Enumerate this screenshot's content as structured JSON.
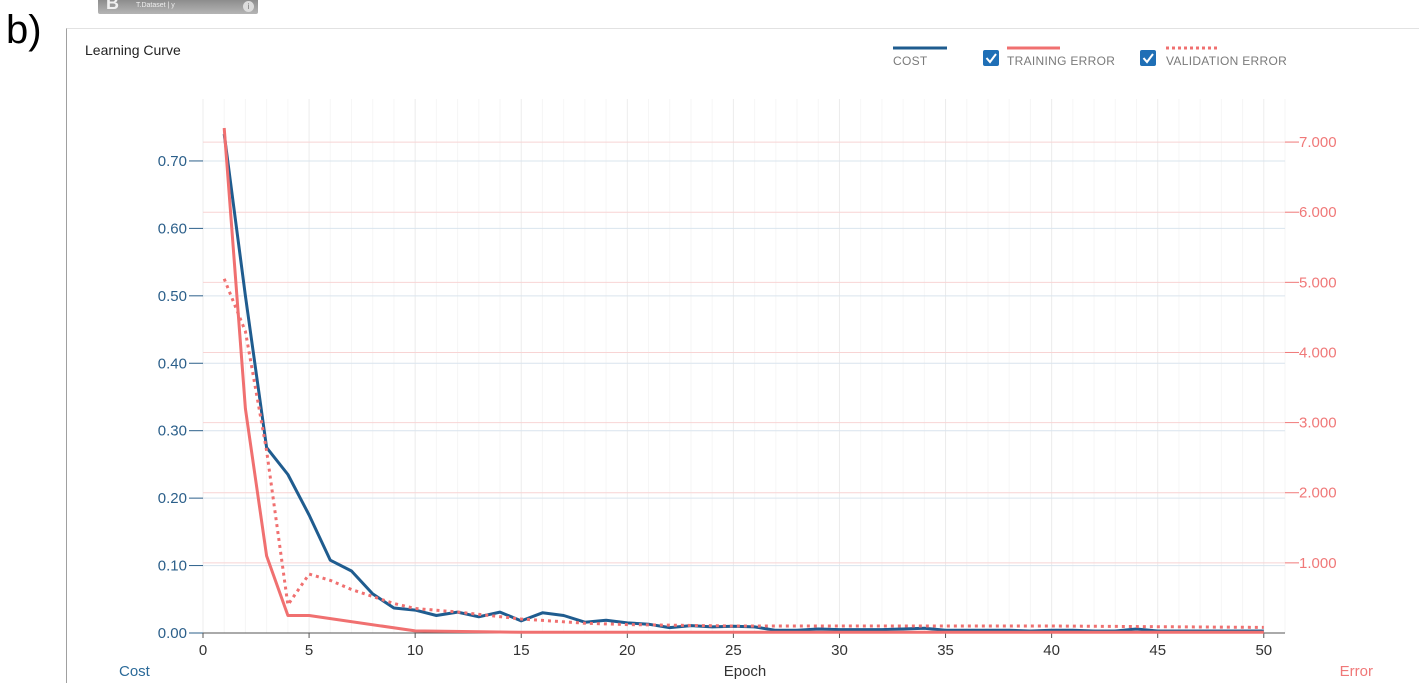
{
  "panel_label": "b)",
  "header_strip": {
    "letter": "B",
    "text": "T.Dataset | y"
  },
  "colors": {
    "cost": "#1f5c8f",
    "error": "#f07070",
    "grid_blue": "#d9e4ee",
    "grid_red": "#f8d4d4"
  },
  "chart_data": {
    "type": "line",
    "title": "Learning Curve",
    "xlabel": "Epoch",
    "ylabel_left": "Cost",
    "ylabel_right": "Error",
    "xlim": [
      0,
      51
    ],
    "ylim_left": [
      0,
      0.78
    ],
    "ylim_right": [
      0,
      7.5
    ],
    "x_ticks": [
      "0",
      "5",
      "10",
      "15",
      "20",
      "25",
      "30",
      "35",
      "40",
      "45",
      "50"
    ],
    "y_left_ticks": [
      "0.00",
      "0.10",
      "0.20",
      "0.30",
      "0.40",
      "0.50",
      "0.60",
      "0.70"
    ],
    "y_right_ticks": [
      "1.000",
      "2.000",
      "3.000",
      "4.000",
      "5.000",
      "6.000",
      "7.000"
    ],
    "legend_position": "top-right",
    "legend": [
      {
        "label": "COST",
        "style": "solid",
        "color": "#1f5c8f",
        "checkbox": false
      },
      {
        "label": "TRAINING ERROR",
        "style": "solid",
        "color": "#f07070",
        "checkbox": true
      },
      {
        "label": "VALIDATION ERROR",
        "style": "dotted",
        "color": "#f07070",
        "checkbox": true
      }
    ],
    "series": [
      {
        "name": "COST",
        "axis": "left",
        "color": "#1f5c8f",
        "style": "solid",
        "x": [
          1,
          2,
          3,
          4,
          5,
          6,
          7,
          8,
          9,
          10,
          11,
          12,
          13,
          14,
          15,
          16,
          17,
          18,
          19,
          20,
          21,
          22,
          23,
          24,
          25,
          26,
          27,
          28,
          29,
          30,
          31,
          32,
          33,
          34,
          35,
          36,
          37,
          38,
          39,
          40,
          41,
          42,
          43,
          44,
          45,
          46,
          47,
          48,
          49,
          50
        ],
        "values": [
          0.74,
          0.5,
          0.275,
          0.235,
          0.175,
          0.108,
          0.092,
          0.058,
          0.037,
          0.034,
          0.026,
          0.031,
          0.024,
          0.031,
          0.018,
          0.03,
          0.026,
          0.016,
          0.019,
          0.015,
          0.013,
          0.008,
          0.011,
          0.009,
          0.01,
          0.009,
          0.004,
          0.004,
          0.006,
          0.005,
          0.005,
          0.005,
          0.006,
          0.007,
          0.004,
          0.004,
          0.004,
          0.004,
          0.003,
          0.004,
          0.004,
          0.003,
          0.003,
          0.006,
          0.003,
          0.003,
          0.003,
          0.003,
          0.003,
          0.003
        ]
      },
      {
        "name": "TRAINING ERROR",
        "axis": "right",
        "color": "#f07070",
        "style": "solid",
        "x": [
          1,
          2,
          3,
          4,
          5,
          10,
          15,
          20,
          25,
          30,
          35,
          40,
          45,
          50
        ],
        "values": [
          7.2,
          3.2,
          1.1,
          0.25,
          0.25,
          0.03,
          0.01,
          0.01,
          0.01,
          0.01,
          0.01,
          0.01,
          0.01,
          0.01
        ]
      },
      {
        "name": "VALIDATION ERROR",
        "axis": "right",
        "color": "#f07070",
        "style": "dotted",
        "x": [
          1,
          2,
          3,
          4,
          5,
          6,
          7,
          8,
          9,
          10,
          12,
          15,
          18,
          20,
          25,
          30,
          35,
          40,
          45,
          50
        ],
        "values": [
          5.05,
          4.3,
          2.6,
          0.4,
          0.84,
          0.75,
          0.62,
          0.52,
          0.42,
          0.35,
          0.3,
          0.2,
          0.14,
          0.12,
          0.1,
          0.1,
          0.1,
          0.1,
          0.09,
          0.08
        ]
      }
    ]
  }
}
